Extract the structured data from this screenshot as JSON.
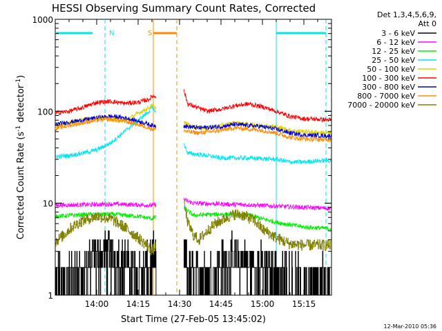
{
  "chart_data": {
    "type": "line",
    "title": "HESSI Observing Summary Count Rates, Corrected",
    "xlabel": "Start Time (27-Feb-05 13:45:02)",
    "ylabel": "Corrected Count Rate (s",
    "ylabel_sup1": "-1",
    "ylabel_mid": " detector",
    "ylabel_sup2": "-1",
    "ylabel_end": ")",
    "yscale": "log",
    "ylim": [
      1,
      1000
    ],
    "xlim_minutes": [
      0,
      100
    ],
    "x_start": "13:45:02",
    "x_ticks": [
      {
        "label": "14:00",
        "minute": 15
      },
      {
        "label": "14:15",
        "minute": 30
      },
      {
        "label": "14:30",
        "minute": 45
      },
      {
        "label": "14:45",
        "minute": 60
      },
      {
        "label": "15:00",
        "minute": 75
      },
      {
        "label": "15:15",
        "minute": 90
      }
    ],
    "y_ticks": [
      {
        "label": "1",
        "value": 1
      },
      {
        "label": "10",
        "value": 10
      },
      {
        "label": "100",
        "value": 100
      },
      {
        "label": "1000",
        "value": 1000
      }
    ],
    "legend": {
      "title1": "Det 1,3,4,5,6,9,",
      "title2": "Att 0",
      "placement": "right"
    },
    "gap_minutes": [
      36.5,
      46.5
    ],
    "markers": [
      {
        "label": "N",
        "type": "night",
        "solid_at": 0,
        "dashed_at": 18,
        "color": "#00e5ee"
      },
      {
        "label": "",
        "type": "night",
        "solid_at": 80,
        "dashed_at": 98,
        "color": "#00e5ee"
      },
      {
        "label": "S",
        "type": "saa",
        "solid_at": 35.5,
        "dashed_at": 44,
        "color": "#ff8c00"
      }
    ],
    "series": [
      {
        "name": "3 - 6 keV",
        "color": "#000000",
        "values": [
          [
            0,
            1.3
          ],
          [
            5,
            1.6
          ],
          [
            10,
            1.5
          ],
          [
            13,
            2.2
          ],
          [
            16,
            2.5
          ],
          [
            20,
            2.6
          ],
          [
            25,
            2.3
          ],
          [
            28,
            1.8
          ],
          [
            32,
            1.6
          ],
          [
            34,
            2.0
          ],
          [
            46.5,
            2.4
          ],
          [
            48,
            1.7
          ],
          [
            52,
            1.6
          ],
          [
            55,
            1.6
          ],
          [
            60,
            2.0
          ],
          [
            65,
            2.2
          ],
          [
            70,
            2.0
          ],
          [
            75,
            1.8
          ],
          [
            78,
            1.7
          ],
          [
            82,
            1.5
          ],
          [
            88,
            1.3
          ],
          [
            95,
            1.3
          ],
          [
            100,
            1.3
          ]
        ]
      },
      {
        "name": "6 - 12 keV",
        "color": "#ff00ff",
        "values": [
          [
            0,
            9.5
          ],
          [
            10,
            9.6
          ],
          [
            20,
            9.8
          ],
          [
            30,
            9.6
          ],
          [
            35,
            9.5
          ],
          [
            46.5,
            11
          ],
          [
            50,
            10
          ],
          [
            60,
            9.8
          ],
          [
            70,
            9.6
          ],
          [
            80,
            9.3
          ],
          [
            90,
            9.0
          ],
          [
            100,
            8.8
          ]
        ]
      },
      {
        "name": "12 - 25 keV",
        "color": "#00ee00",
        "values": [
          [
            0,
            7.2
          ],
          [
            10,
            7.5
          ],
          [
            20,
            7.6
          ],
          [
            30,
            7.2
          ],
          [
            35,
            6.8
          ],
          [
            46.5,
            9.0
          ],
          [
            50,
            7.4
          ],
          [
            60,
            7.6
          ],
          [
            70,
            7.4
          ],
          [
            80,
            6.2
          ],
          [
            90,
            5.5
          ],
          [
            100,
            5.3
          ]
        ]
      },
      {
        "name": "25 - 50 keV",
        "color": "#00e5ee",
        "values": [
          [
            0,
            32
          ],
          [
            5,
            33
          ],
          [
            10,
            35
          ],
          [
            15,
            38
          ],
          [
            20,
            45
          ],
          [
            25,
            60
          ],
          [
            30,
            80
          ],
          [
            34,
            100
          ],
          [
            35,
            110
          ],
          [
            46.5,
            45
          ],
          [
            48,
            35
          ],
          [
            55,
            33
          ],
          [
            60,
            31
          ],
          [
            70,
            31
          ],
          [
            80,
            30
          ],
          [
            85,
            28
          ],
          [
            90,
            28
          ],
          [
            95,
            29
          ],
          [
            100,
            29
          ]
        ]
      },
      {
        "name": "50 - 100 keV",
        "color": "#e0d000",
        "values": [
          [
            0,
            70
          ],
          [
            5,
            75
          ],
          [
            10,
            82
          ],
          [
            15,
            85
          ],
          [
            20,
            82
          ],
          [
            25,
            78
          ],
          [
            30,
            95
          ],
          [
            34,
            110
          ],
          [
            35,
            115
          ],
          [
            46.5,
            75
          ],
          [
            50,
            68
          ],
          [
            55,
            65
          ],
          [
            60,
            70
          ],
          [
            65,
            75
          ],
          [
            70,
            72
          ],
          [
            80,
            68
          ],
          [
            85,
            62
          ],
          [
            90,
            60
          ],
          [
            100,
            58
          ]
        ]
      },
      {
        "name": "100 - 300 keV",
        "color": "#ff0000",
        "values": [
          [
            0,
            95
          ],
          [
            5,
            100
          ],
          [
            10,
            110
          ],
          [
            15,
            125
          ],
          [
            20,
            128
          ],
          [
            25,
            122
          ],
          [
            30,
            125
          ],
          [
            34,
            135
          ],
          [
            35,
            145
          ],
          [
            46.5,
            170
          ],
          [
            48,
            120
          ],
          [
            52,
            108
          ],
          [
            55,
            100
          ],
          [
            60,
            105
          ],
          [
            65,
            115
          ],
          [
            70,
            120
          ],
          [
            75,
            112
          ],
          [
            80,
            100
          ],
          [
            85,
            88
          ],
          [
            90,
            83
          ],
          [
            95,
            82
          ],
          [
            100,
            80
          ]
        ]
      },
      {
        "name": "300 - 800 keV",
        "color": "#0000cc",
        "values": [
          [
            0,
            72
          ],
          [
            5,
            76
          ],
          [
            10,
            80
          ],
          [
            15,
            85
          ],
          [
            20,
            88
          ],
          [
            25,
            85
          ],
          [
            30,
            78
          ],
          [
            34,
            72
          ],
          [
            35,
            70
          ],
          [
            46.5,
            70
          ],
          [
            48,
            68
          ],
          [
            52,
            66
          ],
          [
            60,
            68
          ],
          [
            65,
            72
          ],
          [
            70,
            70
          ],
          [
            75,
            68
          ],
          [
            80,
            64
          ],
          [
            85,
            58
          ],
          [
            90,
            55
          ],
          [
            100,
            54
          ]
        ]
      },
      {
        "name": "800 - 7000 keV",
        "color": "#ff8c00",
        "values": [
          [
            0,
            65
          ],
          [
            5,
            70
          ],
          [
            10,
            75
          ],
          [
            15,
            80
          ],
          [
            20,
            82
          ],
          [
            25,
            78
          ],
          [
            30,
            72
          ],
          [
            34,
            66
          ],
          [
            35,
            64
          ],
          [
            46.5,
            62
          ],
          [
            48,
            60
          ],
          [
            52,
            58
          ],
          [
            60,
            62
          ],
          [
            65,
            66
          ],
          [
            70,
            64
          ],
          [
            75,
            62
          ],
          [
            80,
            58
          ],
          [
            85,
            52
          ],
          [
            90,
            50
          ],
          [
            100,
            49
          ]
        ]
      },
      {
        "name": "7000 - 20000 keV",
        "color": "#808000",
        "values": [
          [
            0,
            3.8
          ],
          [
            3,
            4.5
          ],
          [
            6,
            5.5
          ],
          [
            10,
            6.5
          ],
          [
            15,
            7.2
          ],
          [
            20,
            6.8
          ],
          [
            25,
            5.5
          ],
          [
            30,
            4.2
          ],
          [
            33,
            3.5
          ],
          [
            35,
            3.0
          ],
          [
            46.5,
            10
          ],
          [
            48,
            6.0
          ],
          [
            50,
            4.5
          ],
          [
            52,
            4.0
          ],
          [
            55,
            5.0
          ],
          [
            58,
            6.0
          ],
          [
            62,
            7.0
          ],
          [
            65,
            7.6
          ],
          [
            68,
            7.4
          ],
          [
            72,
            6.5
          ],
          [
            75,
            5.2
          ],
          [
            80,
            4.2
          ],
          [
            85,
            3.6
          ],
          [
            90,
            3.5
          ],
          [
            100,
            3.5
          ]
        ]
      }
    ]
  },
  "footer": {
    "date": "12-Mar-2010 05:36"
  }
}
